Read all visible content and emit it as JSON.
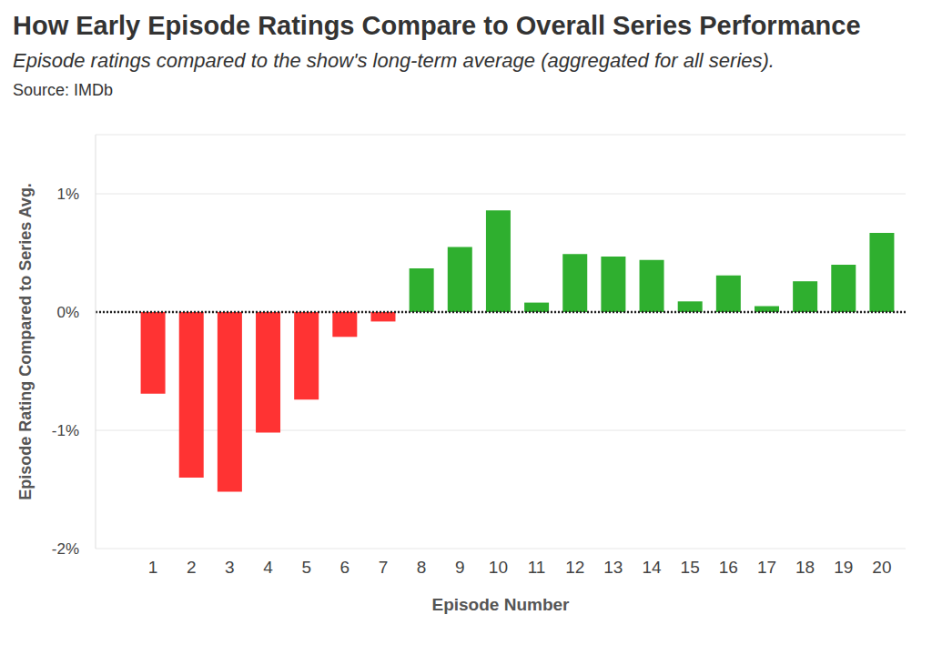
{
  "chart_data": {
    "type": "bar",
    "title": "How Early Episode Ratings Compare to Overall Series Performance",
    "subtitle": "Episode ratings compared to the show's long-term average (aggregated for all series).",
    "source": "Source: IMDb",
    "x_label": "Episode Number",
    "y_label": "Episode Rating Compared to Series Avg.",
    "categories": [
      "1",
      "2",
      "3",
      "4",
      "5",
      "6",
      "7",
      "8",
      "9",
      "10",
      "11",
      "12",
      "13",
      "14",
      "15",
      "16",
      "17",
      "18",
      "19",
      "20"
    ],
    "values": [
      -0.69,
      -1.4,
      -1.52,
      -1.02,
      -0.74,
      -0.21,
      -0.08,
      0.37,
      0.55,
      0.86,
      0.08,
      0.49,
      0.47,
      0.44,
      0.09,
      0.31,
      0.05,
      0.26,
      0.4,
      0.67
    ],
    "colors": [
      "#ff3333",
      "#ff3333",
      "#ff3333",
      "#ff3333",
      "#ff3333",
      "#ff3333",
      "#ff3333",
      "#2faf2f",
      "#2faf2f",
      "#2faf2f",
      "#2faf2f",
      "#2faf2f",
      "#2faf2f",
      "#2faf2f",
      "#2faf2f",
      "#2faf2f",
      "#2faf2f",
      "#2faf2f",
      "#2faf2f",
      "#2faf2f"
    ],
    "ylim": [
      -2,
      1.5
    ],
    "yticks": [
      {
        "value": -2,
        "label": "-2%"
      },
      {
        "value": -1,
        "label": "-1%"
      },
      {
        "value": 0,
        "label": "0%"
      },
      {
        "value": 1,
        "label": "1%"
      }
    ],
    "grid": true
  }
}
